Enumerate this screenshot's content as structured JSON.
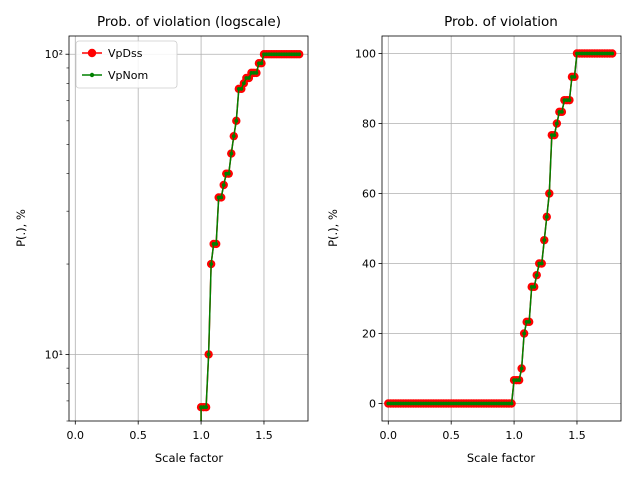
{
  "chart_data": [
    {
      "type": "line",
      "title": "Prob. of violation (logscale)",
      "xlabel": "Scale factor",
      "ylabel": "P(.), %",
      "yscale": "log",
      "xlim": [
        -0.05,
        1.85
      ],
      "ylim": [
        6.0,
        115
      ],
      "xticks": [
        0.0,
        0.5,
        1.0,
        1.5
      ],
      "xtick_labels": [
        "0.0",
        "0.5",
        "1.0",
        "1.5"
      ],
      "yticks": [
        10,
        100
      ],
      "ytick_labels": [
        "10¹",
        "10²"
      ],
      "grid": true,
      "legend": "top-left",
      "series": [
        {
          "name": "VpDss",
          "color": "#ff0000",
          "marker": "circle",
          "x": "shared",
          "y": "shared"
        },
        {
          "name": "VpNom",
          "color": "#008000",
          "marker": "point",
          "x": "shared",
          "y": "shared"
        }
      ]
    },
    {
      "type": "line",
      "title": "Prob. of violation",
      "xlabel": "Scale factor",
      "ylabel": "P(.), %",
      "yscale": "linear",
      "xlim": [
        -0.05,
        1.85
      ],
      "ylim": [
        -5,
        105
      ],
      "xticks": [
        0.0,
        0.5,
        1.0,
        1.5
      ],
      "xtick_labels": [
        "0.0",
        "0.5",
        "1.0",
        "1.5"
      ],
      "yticks": [
        0,
        20,
        40,
        60,
        80,
        100
      ],
      "ytick_labels": [
        "0",
        "20",
        "40",
        "60",
        "80",
        "100"
      ],
      "grid": true,
      "legend": "none",
      "series": [
        {
          "name": "VpDss",
          "color": "#ff0000",
          "marker": "circle",
          "x": "shared",
          "y": "shared"
        },
        {
          "name": "VpNom",
          "color": "#008000",
          "marker": "point",
          "x": "shared",
          "y": "shared"
        }
      ]
    }
  ],
  "shared_series": {
    "x": [
      0.0,
      0.02,
      0.04,
      0.06,
      0.08,
      0.1,
      0.12,
      0.14,
      0.16,
      0.18,
      0.2,
      0.22,
      0.24,
      0.26,
      0.28,
      0.3,
      0.32,
      0.34,
      0.36,
      0.38,
      0.4,
      0.42,
      0.44,
      0.46,
      0.48,
      0.5,
      0.52,
      0.54,
      0.56,
      0.58,
      0.6,
      0.62,
      0.64,
      0.66,
      0.68,
      0.7,
      0.72,
      0.74,
      0.76,
      0.78,
      0.8,
      0.82,
      0.84,
      0.86,
      0.88,
      0.9,
      0.92,
      0.94,
      0.96,
      0.98,
      1.0,
      1.02,
      1.04,
      1.06,
      1.08,
      1.1,
      1.12,
      1.14,
      1.16,
      1.18,
      1.2,
      1.22,
      1.24,
      1.26,
      1.28,
      1.3,
      1.32,
      1.34,
      1.36,
      1.38,
      1.4,
      1.42,
      1.44,
      1.46,
      1.48,
      1.5,
      1.52,
      1.54,
      1.56,
      1.58,
      1.6,
      1.62,
      1.64,
      1.66,
      1.68,
      1.7,
      1.72,
      1.74,
      1.76,
      1.78
    ],
    "y": [
      0,
      0,
      0,
      0,
      0,
      0,
      0,
      0,
      0,
      0,
      0,
      0,
      0,
      0,
      0,
      0,
      0,
      0,
      0,
      0,
      0,
      0,
      0,
      0,
      0,
      0,
      0,
      0,
      0,
      0,
      0,
      0,
      0,
      0,
      0,
      0,
      0,
      0,
      0,
      0,
      0,
      0,
      0,
      0,
      0,
      0,
      0,
      0,
      0,
      0,
      6.67,
      6.67,
      6.67,
      10,
      20,
      23.33,
      23.33,
      33.33,
      33.33,
      36.67,
      40,
      40,
      46.67,
      53.33,
      60,
      76.67,
      76.67,
      80,
      83.33,
      83.33,
      86.67,
      86.67,
      86.67,
      93.33,
      93.33,
      100,
      100,
      100,
      100,
      100,
      100,
      100,
      100,
      100,
      100,
      100,
      100,
      100,
      100,
      100
    ]
  }
}
